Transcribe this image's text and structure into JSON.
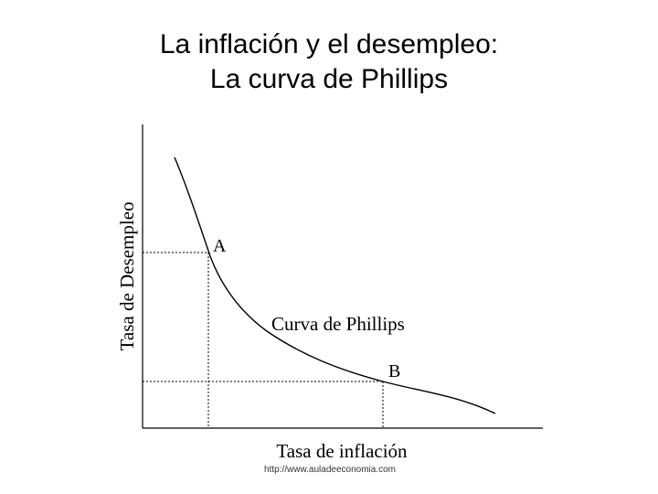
{
  "title": {
    "line1": "La inflación y el desempleo:",
    "line2": "La curva de Phillips"
  },
  "chart": {
    "y_axis_label": "Tasa de Desempleo",
    "x_axis_label": "Tasa de inflación",
    "curve_label": "Curva de Phillips",
    "points": [
      {
        "label": "A"
      },
      {
        "label": "B"
      }
    ]
  },
  "source_credit": "http://www.auladeeconomia.com",
  "colors": {
    "ink": "#000000",
    "background": "#ffffff"
  }
}
